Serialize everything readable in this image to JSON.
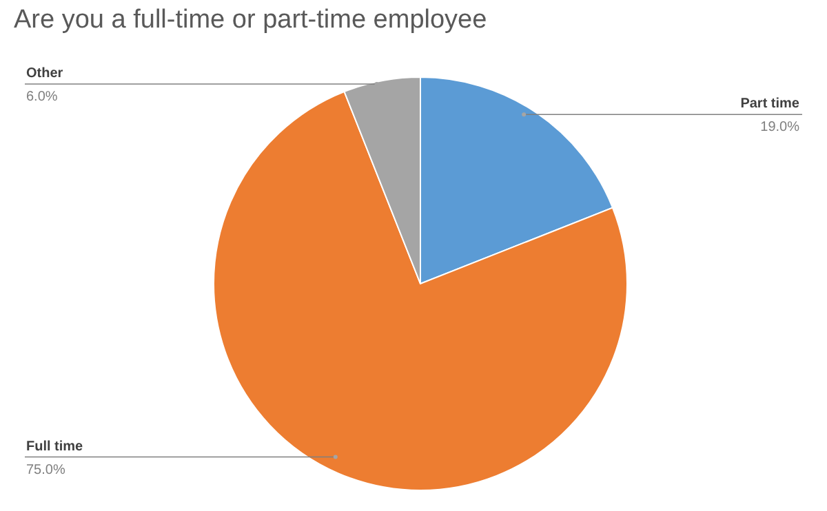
{
  "chart_data": {
    "type": "pie",
    "title": "Are you a full-time or part-time employee",
    "categories": [
      "Part time",
      "Full time",
      "Other"
    ],
    "values": [
      19,
      75,
      6
    ],
    "value_labels": [
      "19.0%",
      "75.0%",
      "6.0%"
    ],
    "colors": [
      "#5b9bd5",
      "#ed7d31",
      "#a5a5a5"
    ],
    "legend": false
  }
}
